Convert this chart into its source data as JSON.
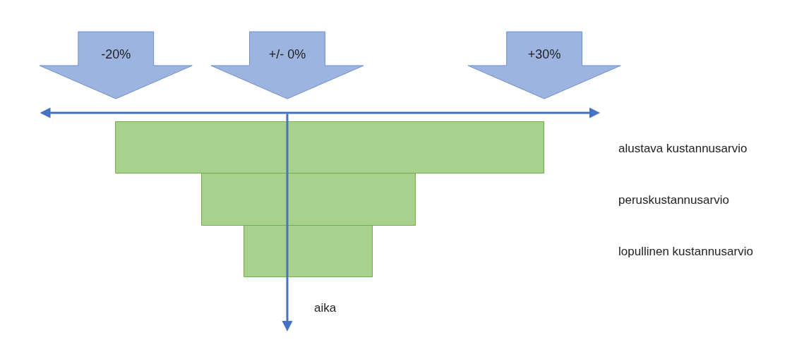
{
  "chart_data": {
    "type": "bar",
    "orientation": "horizontal",
    "categories": [
      "alustava kustannusarvio",
      "peruskustannusarvio",
      "lopullinen kustannusarvio"
    ],
    "values": [
      50,
      25,
      15
    ],
    "base": [
      -20,
      -10,
      -5
    ],
    "color": "#a9d18e",
    "xlim": [
      -29,
      36.5
    ],
    "xticks": [
      {
        "value": -20,
        "label": "-20%"
      },
      {
        "value": 0,
        "label": "+/- 0%"
      },
      {
        "value": 30,
        "label": "+30%"
      }
    ],
    "ref_lines": [
      {
        "axis": "x",
        "value": 0,
        "label": "aika",
        "color": "#4472c4"
      }
    ]
  }
}
